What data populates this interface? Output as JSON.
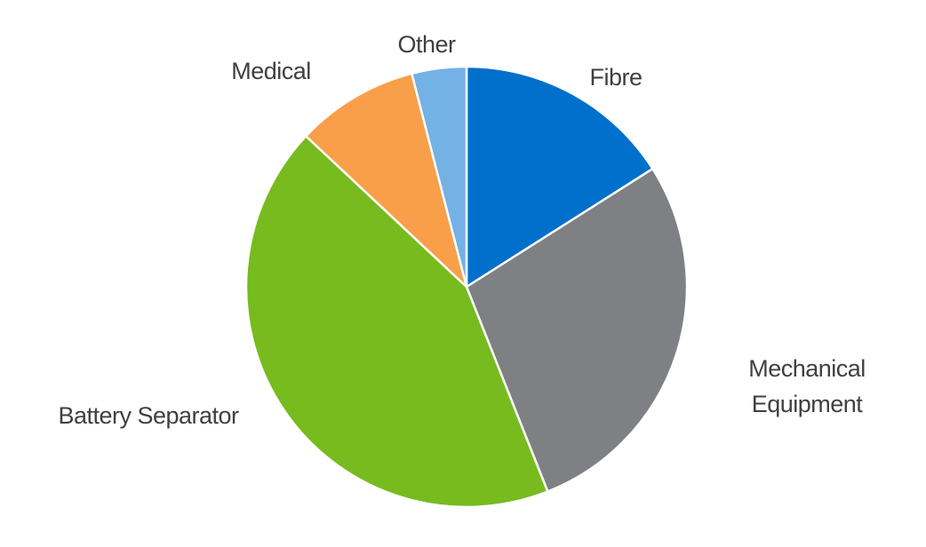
{
  "chart_data": {
    "type": "pie",
    "categories": [
      "Fibre",
      "Mechanical Equipment",
      "Battery Separator",
      "Medical",
      "Other"
    ],
    "values": [
      16,
      28,
      43,
      9,
      4
    ],
    "colors": [
      "#0070cc",
      "#7f8084",
      "#77bb1f",
      "#f99f4a",
      "#74b1e4"
    ]
  }
}
